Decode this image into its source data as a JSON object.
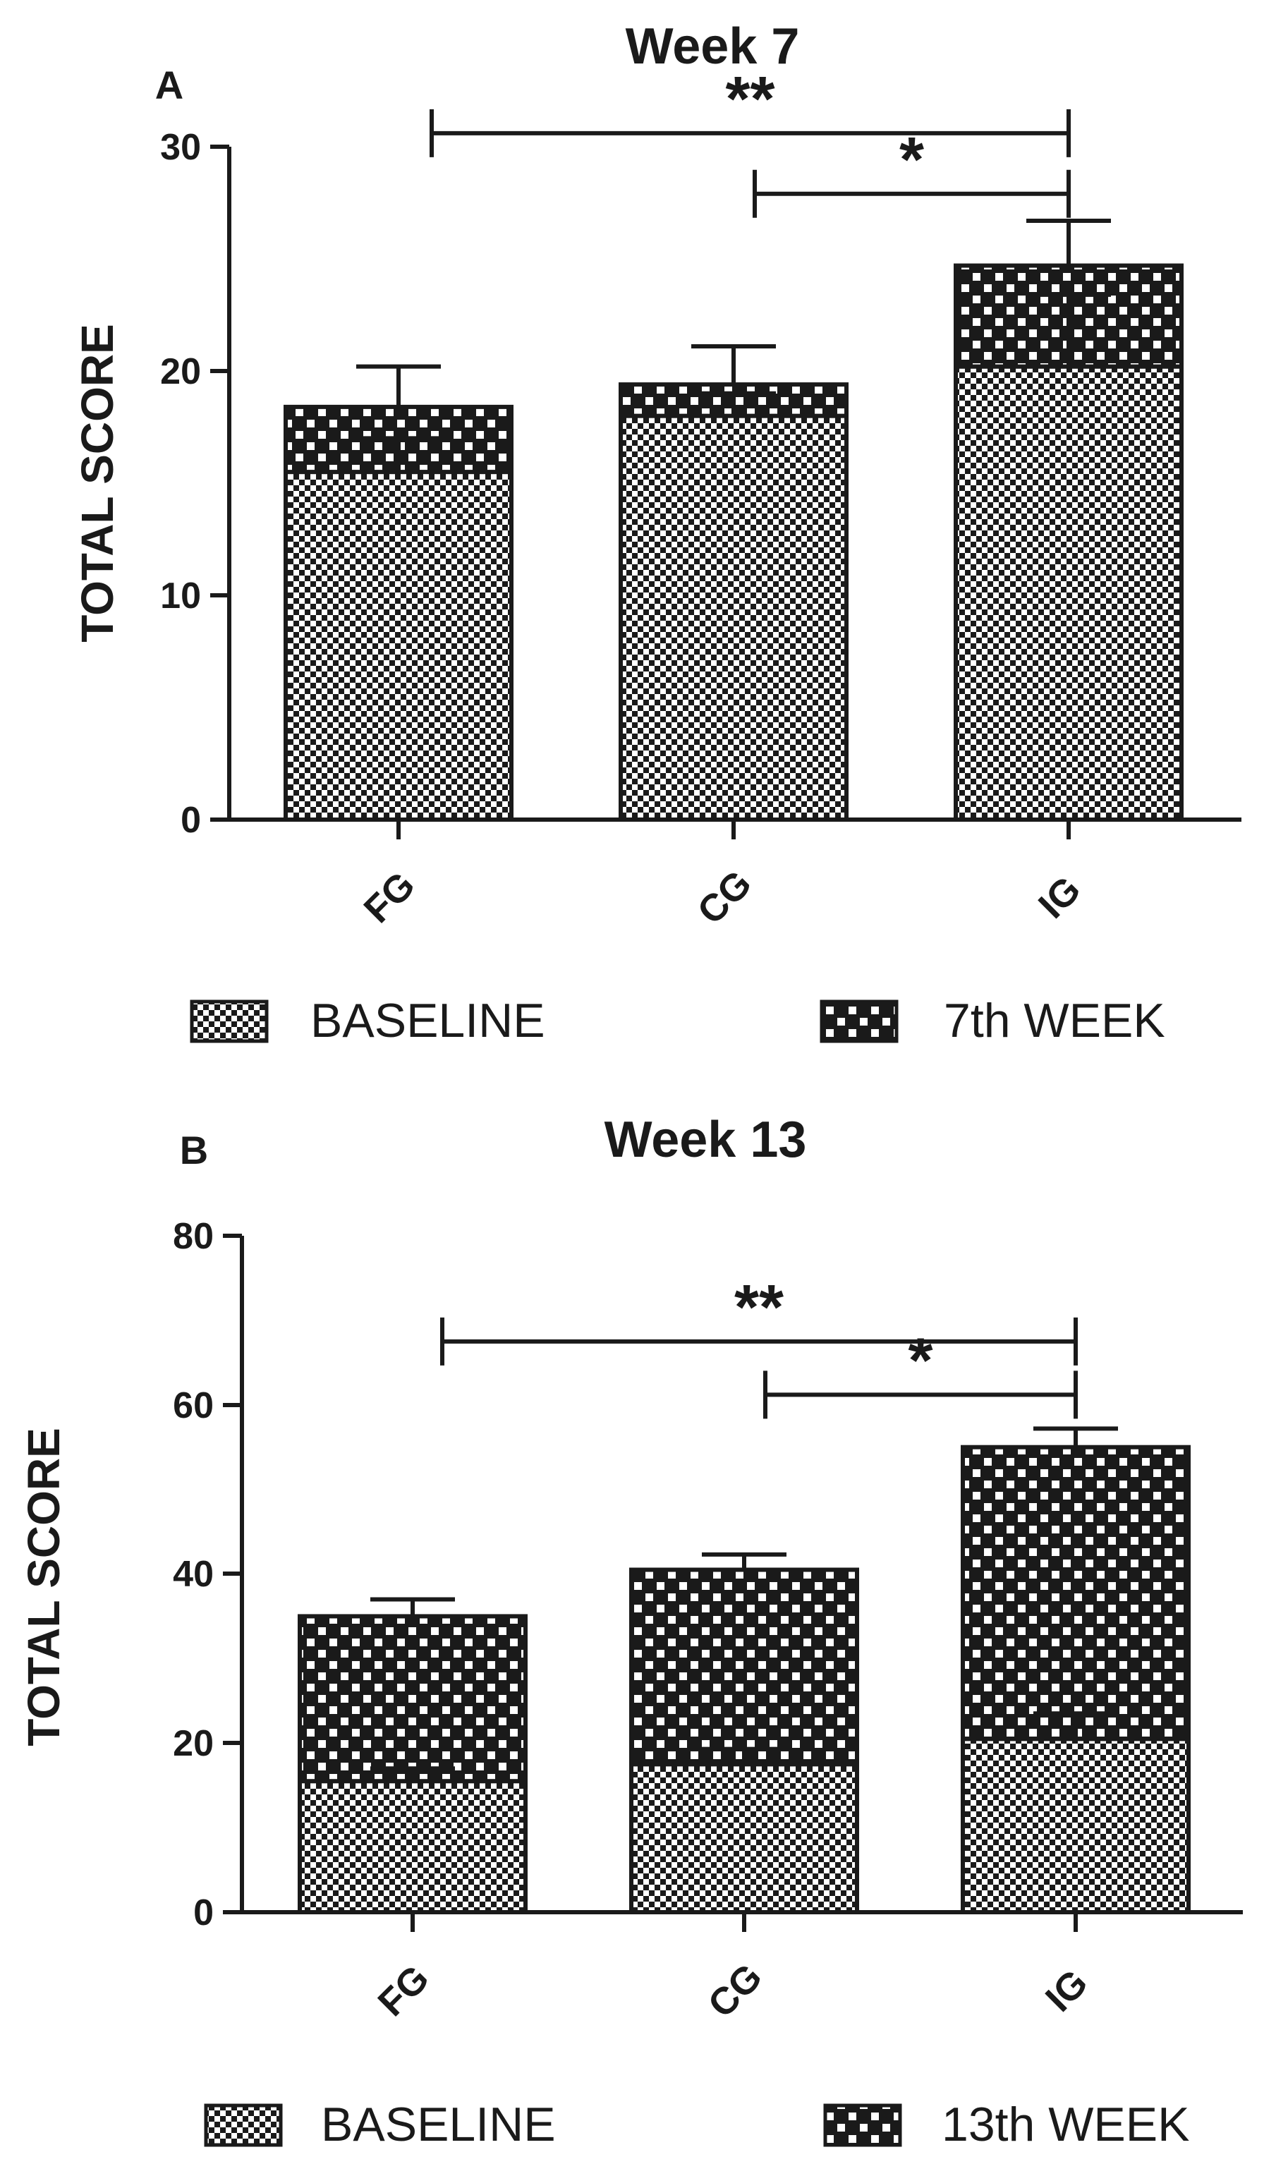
{
  "chart_data": [
    {
      "panel": "A",
      "type": "bar",
      "stacked": true,
      "title": "Week 7",
      "ylabel": "TOTAL SCORE",
      "xlabel": "",
      "ylim": [
        0,
        30
      ],
      "yticks": [
        "0",
        "10",
        "20",
        "30"
      ],
      "categories": [
        "FG",
        "CG",
        "IG"
      ],
      "series": [
        {
          "name": "BASELINE",
          "values": [
            15.5,
            18.0,
            20.2
          ],
          "errors": [
            1.5,
            1.0,
            3.2
          ]
        },
        {
          "name": "7th WEEK",
          "values": [
            2.9,
            1.4,
            4.5
          ],
          "errors": [
            1.8,
            1.7,
            2.0
          ]
        }
      ],
      "significance": [
        {
          "from": "FG",
          "to": "IG",
          "label": "**",
          "level": 30.6
        },
        {
          "from": "CG",
          "to": "IG",
          "label": "*",
          "level": 27.9
        }
      ],
      "legend": [
        "BASELINE",
        "7th WEEK"
      ],
      "legend_position": "bottom"
    },
    {
      "panel": "B",
      "type": "bar",
      "stacked": true,
      "title": "Week 13",
      "ylabel": "TOTAL SCORE",
      "xlabel": "",
      "ylim": [
        0,
        80
      ],
      "yticks": [
        "0",
        "20",
        "40",
        "60",
        "80"
      ],
      "categories": [
        "FG",
        "CG",
        "IG"
      ],
      "series": [
        {
          "name": "BASELINE",
          "values": [
            15.5,
            17.5,
            20.5
          ],
          "errors": [
            1.5,
            1.8,
            3.0
          ]
        },
        {
          "name": "13th WEEK",
          "values": [
            19.5,
            23.0,
            34.5
          ],
          "errors": [
            2.0,
            1.8,
            2.2
          ]
        }
      ],
      "significance": [
        {
          "from": "FG",
          "to": "IG",
          "label": "**",
          "level": 67.5
        },
        {
          "from": "CG",
          "to": "IG",
          "label": "*",
          "level": 61.2
        }
      ],
      "legend": [
        "BASELINE",
        "13th WEEK"
      ],
      "legend_position": "bottom"
    }
  ],
  "colors": {
    "ink": "#1a1a1a",
    "background": "#ffffff",
    "light_check": "#ffffff"
  }
}
